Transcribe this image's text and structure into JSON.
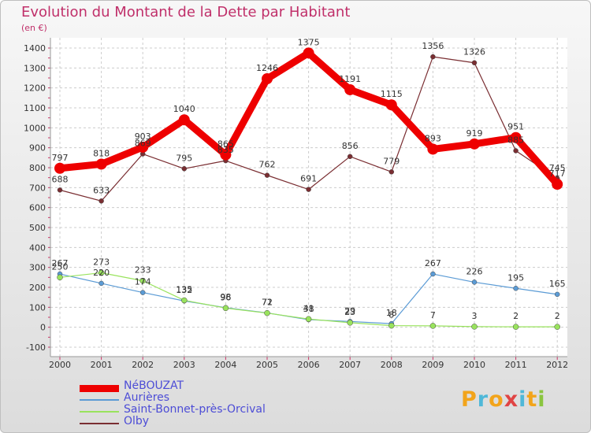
{
  "title": "Evolution du Montant de la Dette par Habitant",
  "subtitle": "(en €)",
  "logo": {
    "text": "Proxiti",
    "letters": [
      "P",
      "r",
      "o",
      "x",
      "i",
      "t",
      "i"
    ],
    "colors": [
      "#f2a41b",
      "#4fb8d8",
      "#f2a41b",
      "#e04444",
      "#4fb8d8",
      "#f2a41b",
      "#8ac53f"
    ]
  },
  "chart_data": {
    "type": "line",
    "title": "Evolution du Montant de la Dette par Habitant",
    "ylabel": "(en €)",
    "xlabel": "",
    "categories": [
      "2000",
      "2001",
      "2002",
      "2003",
      "2004",
      "2005",
      "2006",
      "2007",
      "2008",
      "2009",
      "2010",
      "2011",
      "2012"
    ],
    "ylim": [
      -100,
      1400
    ],
    "yticks": [
      -100,
      0,
      100,
      200,
      300,
      400,
      500,
      600,
      700,
      800,
      900,
      1000,
      1100,
      1200,
      1300,
      1400
    ],
    "grid": true,
    "legend": "bottom-left",
    "series": [
      {
        "name": "NéBOUZAT",
        "color": "#ee0000",
        "values": [
          797,
          818,
          903,
          1040,
          865,
          1246,
          1375,
          1191,
          1115,
          893,
          919,
          951,
          717
        ]
      },
      {
        "name": "Aurières",
        "color": "#5b9bd5",
        "values": [
          267,
          220,
          174,
          132,
          98,
          72,
          38,
          29,
          18,
          267,
          226,
          195,
          165
        ]
      },
      {
        "name": "Saint-Bonnet-près-Orcival",
        "color": "#99e35d",
        "values": [
          250,
          273,
          233,
          135,
          96,
          71,
          41,
          23,
          8,
          7,
          3,
          2,
          2
        ]
      },
      {
        "name": "Olby",
        "color": "#7a2e32",
        "values": [
          688,
          633,
          869,
          795,
          835,
          762,
          691,
          856,
          779,
          1356,
          1326,
          885,
          745
        ]
      }
    ]
  }
}
